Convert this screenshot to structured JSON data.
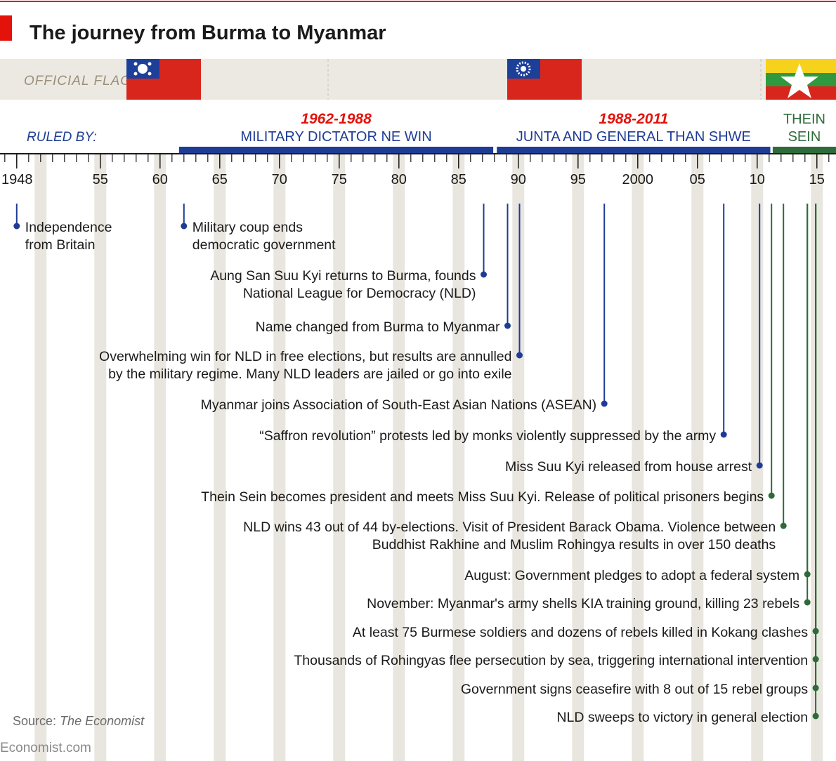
{
  "header": {
    "title": "The journey from Burma to Myanmar"
  },
  "flag_label": "OFFICIAL FLAG",
  "ruled_by_label": "RULED BY:",
  "eras": [
    {
      "dates": "1962-1988",
      "lines": [
        "MILITARY DICTATOR NE WIN"
      ],
      "start": 1961.6,
      "end": 1987.9,
      "color": "#1f3c95"
    },
    {
      "dates": "1988-2011",
      "lines": [
        "JUNTA AND GENERAL THAN SHWE"
      ],
      "start": 1988.2,
      "end": 2011.1,
      "color": "#1f3c95"
    },
    {
      "lines": [
        "THEIN",
        "SEIN"
      ],
      "start": 2011.3,
      "end": 2016.6,
      "color": "#2e6b3a"
    }
  ],
  "axis": {
    "xlim": [
      1946.6,
      2016.6
    ],
    "ticks": [
      1948,
      {
        "value": 1955,
        "label": "55"
      },
      {
        "value": 1960,
        "label": "60"
      },
      {
        "value": 1965,
        "label": "65"
      },
      {
        "value": 1970,
        "label": "70"
      },
      {
        "value": 1975,
        "label": "75"
      },
      {
        "value": 1980,
        "label": "80"
      },
      {
        "value": 1985,
        "label": "85"
      },
      {
        "value": 1990,
        "label": "90"
      },
      {
        "value": 1995,
        "label": "95"
      },
      2000,
      {
        "value": 2005,
        "label": "05"
      },
      {
        "value": 2010,
        "label": "10"
      },
      {
        "value": 2015,
        "label": "15"
      }
    ]
  },
  "events": [
    {
      "year": 1948,
      "color": "#1f3c95",
      "lines": [
        "Independence",
        "from Britain"
      ]
    },
    {
      "year": 1962,
      "color": "#1f3c95",
      "lines": [
        "Military coup ends",
        "democratic government"
      ]
    },
    {
      "year": 1987.1,
      "color": "#1f3c95",
      "lines": [
        "Aung San Suu Kyi returns to Burma, founds",
        "National League for Democracy (NLD)"
      ]
    },
    {
      "year": 1989.1,
      "color": "#1f3c95",
      "lines": [
        "Name changed from Burma to Myanmar"
      ]
    },
    {
      "year": 1990.1,
      "color": "#1f3c95",
      "lines": [
        "Overwhelming win for NLD in free elections, but results are annulled",
        "by the military regime. Many NLD leaders are jailed or go into exile"
      ]
    },
    {
      "year": 1997.2,
      "color": "#1f3c95",
      "lines": [
        "Myanmar joins Association of South-East Asian Nations (ASEAN)"
      ]
    },
    {
      "year": 2007.2,
      "color": "#1f3c95",
      "lines": [
        "“Saffron revolution” protests led by monks violently suppressed by the army"
      ]
    },
    {
      "year": 2010.2,
      "color": "#1f3c95",
      "lines": [
        "Miss Suu Kyi released from house arrest"
      ]
    },
    {
      "year": 2011.2,
      "color": "#2e6b3a",
      "lines": [
        "Thein Sein becomes president and meets Miss Suu Kyi. Release of political prisoners begins"
      ]
    },
    {
      "year": 2012.2,
      "color": "#2e6b3a",
      "lines": [
        "NLD wins 43 out of 44 by-elections. Visit of President Barack Obama. Violence between",
        "Buddhist Rakhine and Muslim Rohingya results in over 150 deaths"
      ]
    },
    {
      "year": 2014.2,
      "color": "#2e6b3a",
      "lines": [
        "August: Government pledges to adopt a federal system"
      ]
    },
    {
      "year": 2014.2,
      "color": "#2e6b3a",
      "lines": [
        "November: Myanmar's army shells KIA training ground, killing 23 rebels"
      ]
    },
    {
      "year": 2014.9,
      "color": "#2e6b3a",
      "lines": [
        "At least 75 Burmese soldiers and dozens of rebels killed in Kokang clashes"
      ]
    },
    {
      "year": 2014.9,
      "color": "#2e6b3a",
      "lines": [
        "Thousands of Rohingyas flee persecution by sea, triggering international intervention"
      ]
    },
    {
      "year": 2014.9,
      "color": "#2e6b3a",
      "lines": [
        "Government signs ceasefire with 8 out of 15 rebel groups"
      ]
    },
    {
      "year": 2014.9,
      "color": "#2e6b3a",
      "lines": [
        "NLD sweeps to victory in general election"
      ]
    }
  ],
  "source": {
    "prefix": "Source:",
    "name": "The Economist"
  },
  "footer": "Economist.com"
}
